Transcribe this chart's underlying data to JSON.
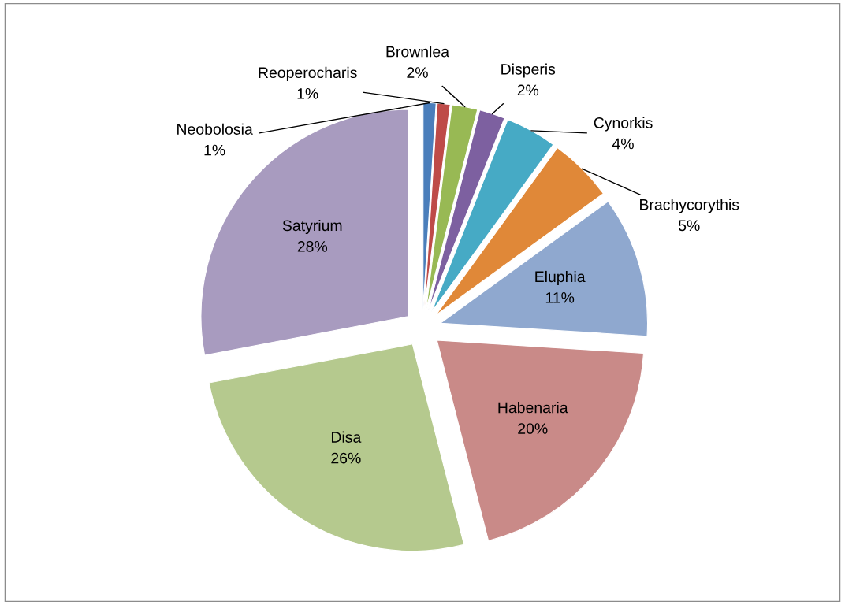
{
  "chart_data": {
    "type": "pie",
    "categories": [
      "Neobolosia",
      "Reoperocharis",
      "Brownlea",
      "Disperis",
      "Cynorkis",
      "Brachycorythis",
      "Eluphia",
      "Habenaria",
      "Disa",
      "Satyrium"
    ],
    "values": [
      1,
      1,
      2,
      2,
      4,
      5,
      11,
      20,
      26,
      28
    ],
    "colors": [
      "#4a7ebb",
      "#be4b48",
      "#98b954",
      "#7d60a0",
      "#46aac5",
      "#e08838",
      "#8fa8cf",
      "#c98a88",
      "#b5c98e",
      "#a89bbf"
    ],
    "value_labels": [
      "1%",
      "1%",
      "2%",
      "2%",
      "4%",
      "5%",
      "11%",
      "20%",
      "26%",
      "28%"
    ],
    "legend": false
  }
}
